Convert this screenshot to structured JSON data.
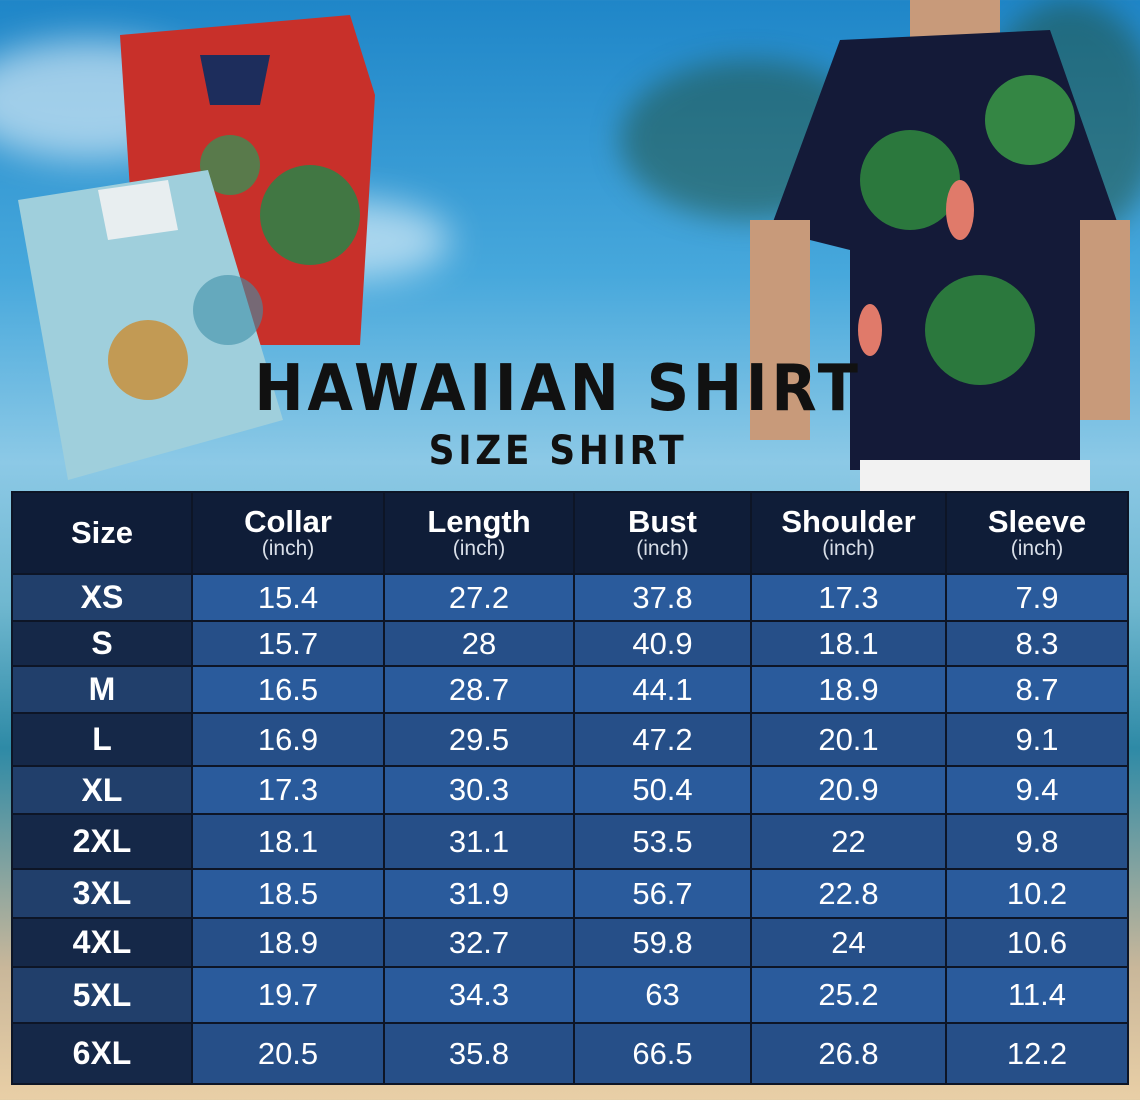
{
  "title": "HAWAIIAN SHIRT",
  "subtitle": "SIZE SHIRT",
  "colors": {
    "header_bg": "#0f1d38",
    "row_light": "#2a5b9c",
    "row_dark": "#264f88",
    "size_col": "#152848"
  },
  "chart_data": {
    "type": "table",
    "columns": [
      {
        "name": "Size",
        "unit": ""
      },
      {
        "name": "Collar",
        "unit": "(inch)"
      },
      {
        "name": "Length",
        "unit": "(inch)"
      },
      {
        "name": "Bust",
        "unit": "(inch)"
      },
      {
        "name": "Shoulder",
        "unit": "(inch)"
      },
      {
        "name": "Sleeve",
        "unit": "(inch)"
      }
    ],
    "rows": [
      [
        "XS",
        "15.4",
        "27.2",
        "37.8",
        "17.3",
        "7.9"
      ],
      [
        "S",
        "15.7",
        "28",
        "40.9",
        "18.1",
        "8.3"
      ],
      [
        "M",
        "16.5",
        "28.7",
        "44.1",
        "18.9",
        "8.7"
      ],
      [
        "L",
        "16.9",
        "29.5",
        "47.2",
        "20.1",
        "9.1"
      ],
      [
        "XL",
        "17.3",
        "30.3",
        "50.4",
        "20.9",
        "9.4"
      ],
      [
        "2XL",
        "18.1",
        "31.1",
        "53.5",
        "22",
        "9.8"
      ],
      [
        "3XL",
        "18.5",
        "31.9",
        "56.7",
        "22.8",
        "10.2"
      ],
      [
        "4XL",
        "18.9",
        "32.7",
        "59.8",
        "24",
        "10.6"
      ],
      [
        "5XL",
        "19.7",
        "34.3",
        "63",
        "25.2",
        "11.4"
      ],
      [
        "6XL",
        "20.5",
        "35.8",
        "66.5",
        "26.8",
        "12.2"
      ]
    ]
  }
}
